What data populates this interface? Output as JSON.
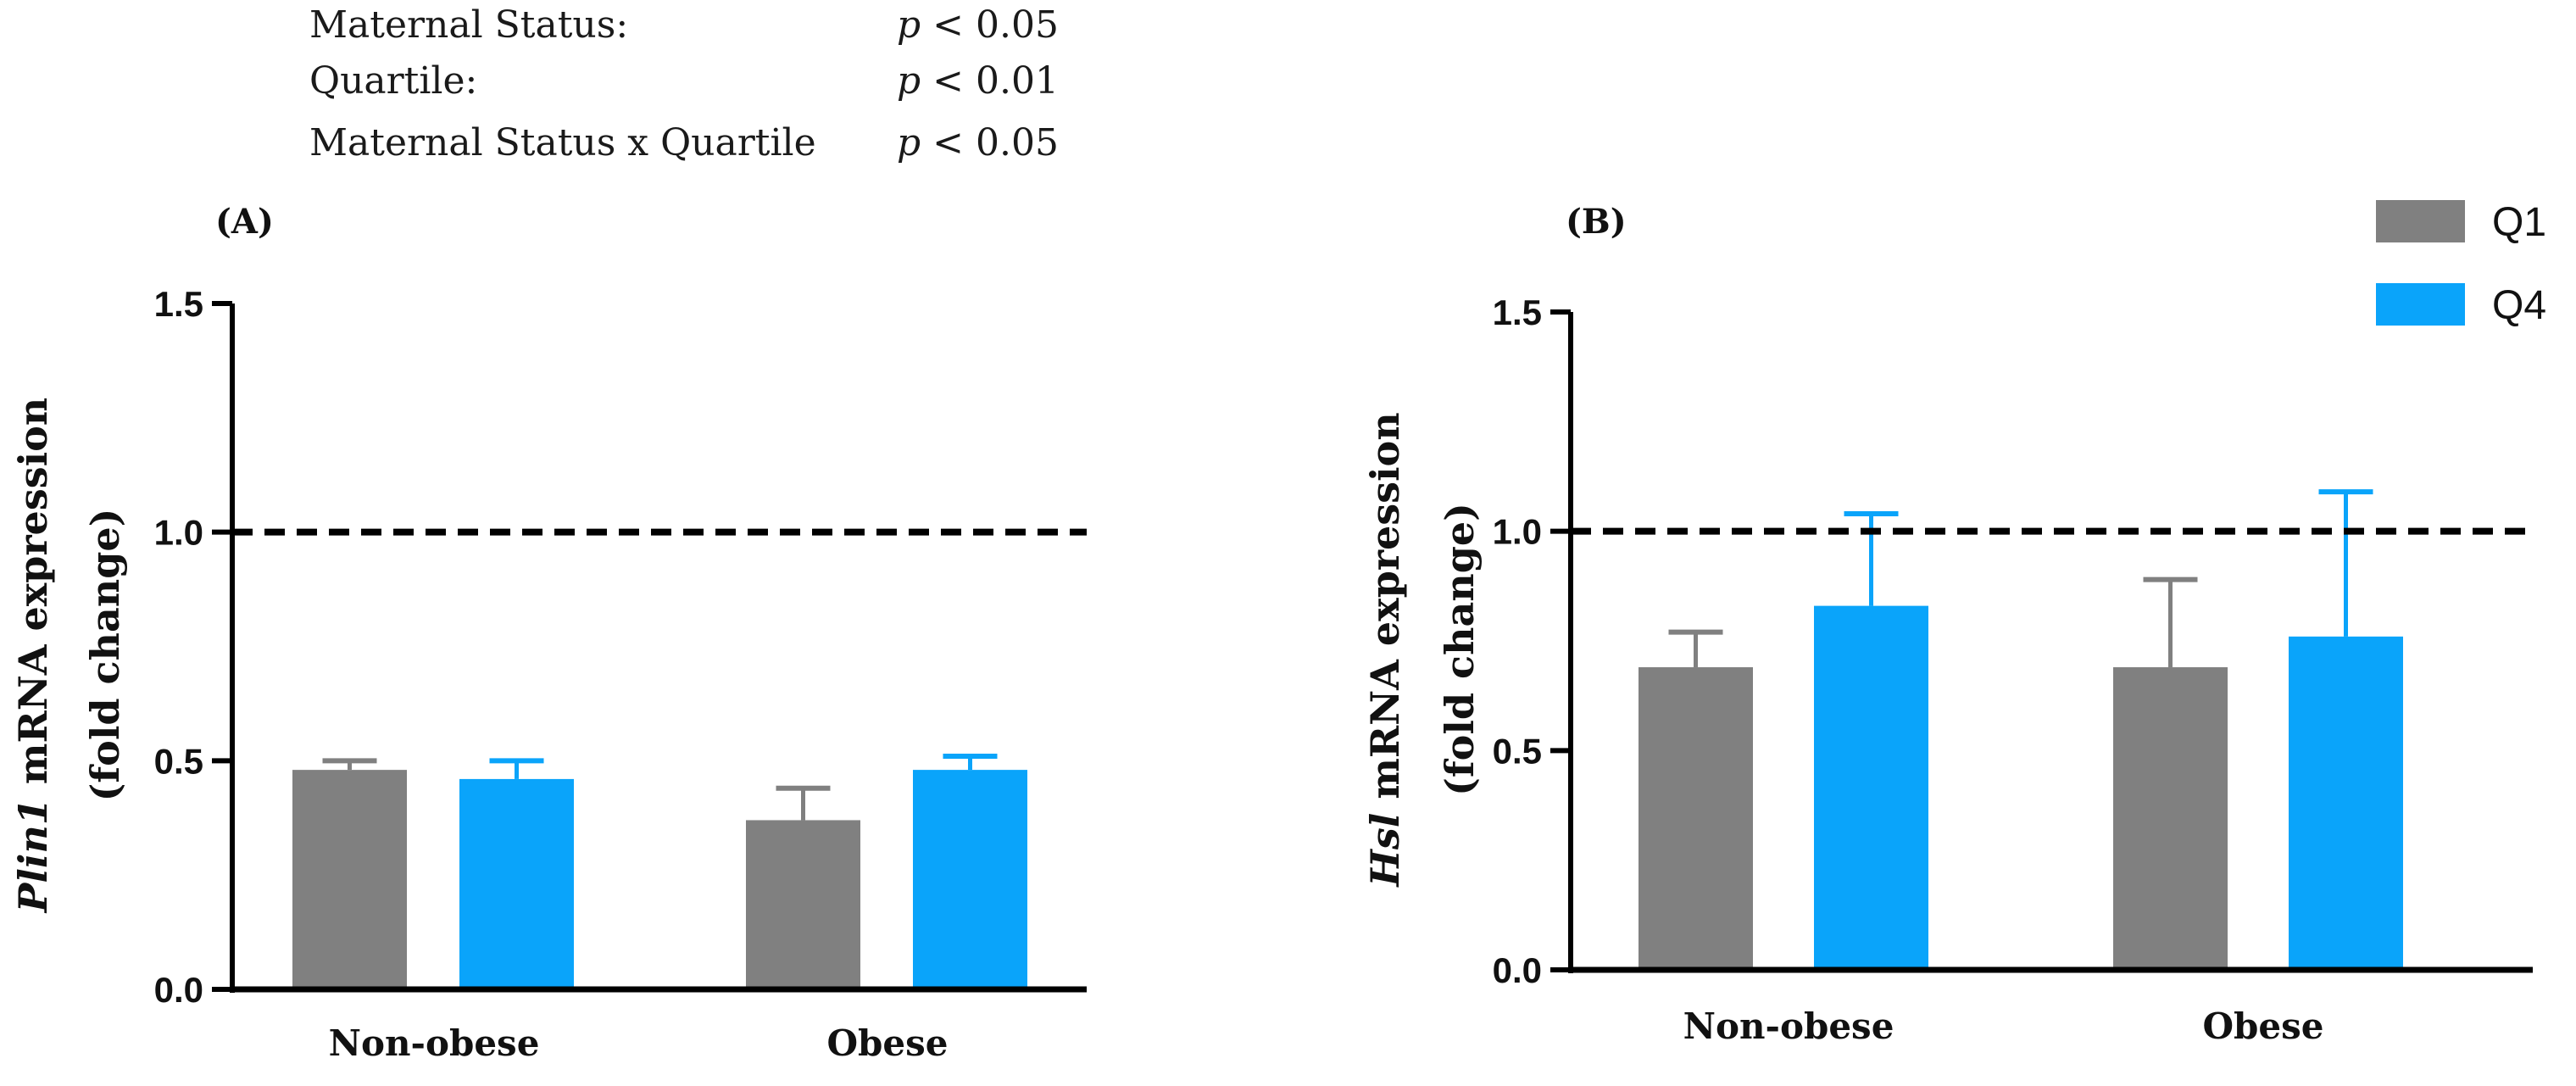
{
  "stats": {
    "rows": [
      {
        "label": "Maternal Status:",
        "p": "p",
        "value": "< 0.05"
      },
      {
        "label": "Quartile:",
        "p": "p",
        "value": "< 0.01"
      },
      {
        "label": "Maternal Status x Quartile",
        "p": "p",
        "value": "< 0.05"
      }
    ]
  },
  "legend": [
    {
      "name": "Q1",
      "color": "#808080"
    },
    {
      "name": "Q4",
      "color": "#0aa4fa"
    }
  ],
  "chart_data": [
    {
      "type": "bar",
      "panel_label": "(A)",
      "title": "",
      "categories": [
        "Non-obese",
        "Obese"
      ],
      "series": [
        {
          "name": "Q1",
          "color": "#808080",
          "values": [
            0.48,
            0.37
          ],
          "errors": [
            0.02,
            0.07
          ]
        },
        {
          "name": "Q4",
          "color": "#0aa4fa",
          "values": [
            0.46,
            0.48
          ],
          "errors": [
            0.04,
            0.03
          ]
        }
      ],
      "reference_line": 1.0,
      "ylabel_italic": "Plin1",
      "ylabel_rest": " mRNA expression",
      "ylabel_line2": "(fold change)",
      "xlabel": "",
      "ylim": [
        0,
        1.5
      ],
      "yticks": [
        0.0,
        0.5,
        1.0,
        1.5
      ],
      "ytick_labels": [
        "0.0",
        "0.5",
        "1.0",
        "1.5"
      ]
    },
    {
      "type": "bar",
      "panel_label": "(B)",
      "title": "",
      "categories": [
        "Non-obese",
        "Obese"
      ],
      "series": [
        {
          "name": "Q1",
          "color": "#808080",
          "values": [
            0.69,
            0.69
          ],
          "errors": [
            0.08,
            0.2
          ]
        },
        {
          "name": "Q4",
          "color": "#0aa4fa",
          "values": [
            0.83,
            0.76
          ],
          "errors": [
            0.21,
            0.33
          ]
        }
      ],
      "reference_line": 1.0,
      "ylabel_italic": "Hsl",
      "ylabel_rest": "  mRNA expression",
      "ylabel_line2": "(fold change)",
      "xlabel": "",
      "ylim": [
        0,
        1.5
      ],
      "yticks": [
        0.0,
        0.5,
        1.0,
        1.5
      ],
      "ytick_labels": [
        "0.0",
        "0.5",
        "1.0",
        "1.5"
      ]
    }
  ]
}
